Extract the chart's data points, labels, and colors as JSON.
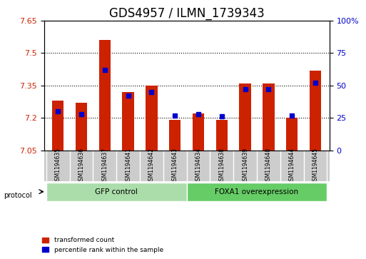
{
  "title": "GDS4957 / ILMN_1739343",
  "samples": [
    "GSM1194635",
    "GSM1194636",
    "GSM1194637",
    "GSM1194641",
    "GSM1194642",
    "GSM1194643",
    "GSM1194634",
    "GSM1194638",
    "GSM1194639",
    "GSM1194640",
    "GSM1194644",
    "GSM1194645"
  ],
  "transformed_count": [
    7.28,
    7.27,
    7.56,
    7.32,
    7.35,
    7.19,
    7.22,
    7.19,
    7.36,
    7.36,
    7.2,
    7.42
  ],
  "percentile_rank": [
    30,
    28,
    62,
    42,
    45,
    27,
    28,
    26,
    47,
    47,
    27,
    52
  ],
  "y_min": 7.05,
  "y_max": 7.65,
  "y_ticks": [
    7.05,
    7.2,
    7.35,
    7.5,
    7.65
  ],
  "y2_ticks": [
    0,
    25,
    50,
    75,
    100
  ],
  "bar_color": "#cc2200",
  "marker_color": "#0000cc",
  "bar_width": 0.5,
  "group1_label": "GFP control",
  "group2_label": "FOXA1 overexpression",
  "group1_count": 6,
  "group2_count": 6,
  "group1_color": "#aaddaa",
  "group2_color": "#66cc66",
  "protocol_label": "protocol",
  "legend1": "transformed count",
  "legend2": "percentile rank within the sample",
  "title_fontsize": 12,
  "label_fontsize": 8,
  "tick_fontsize": 8,
  "background_color": "#ffffff",
  "plot_bg_color": "#ffffff",
  "sample_label_bg": "#cccccc"
}
